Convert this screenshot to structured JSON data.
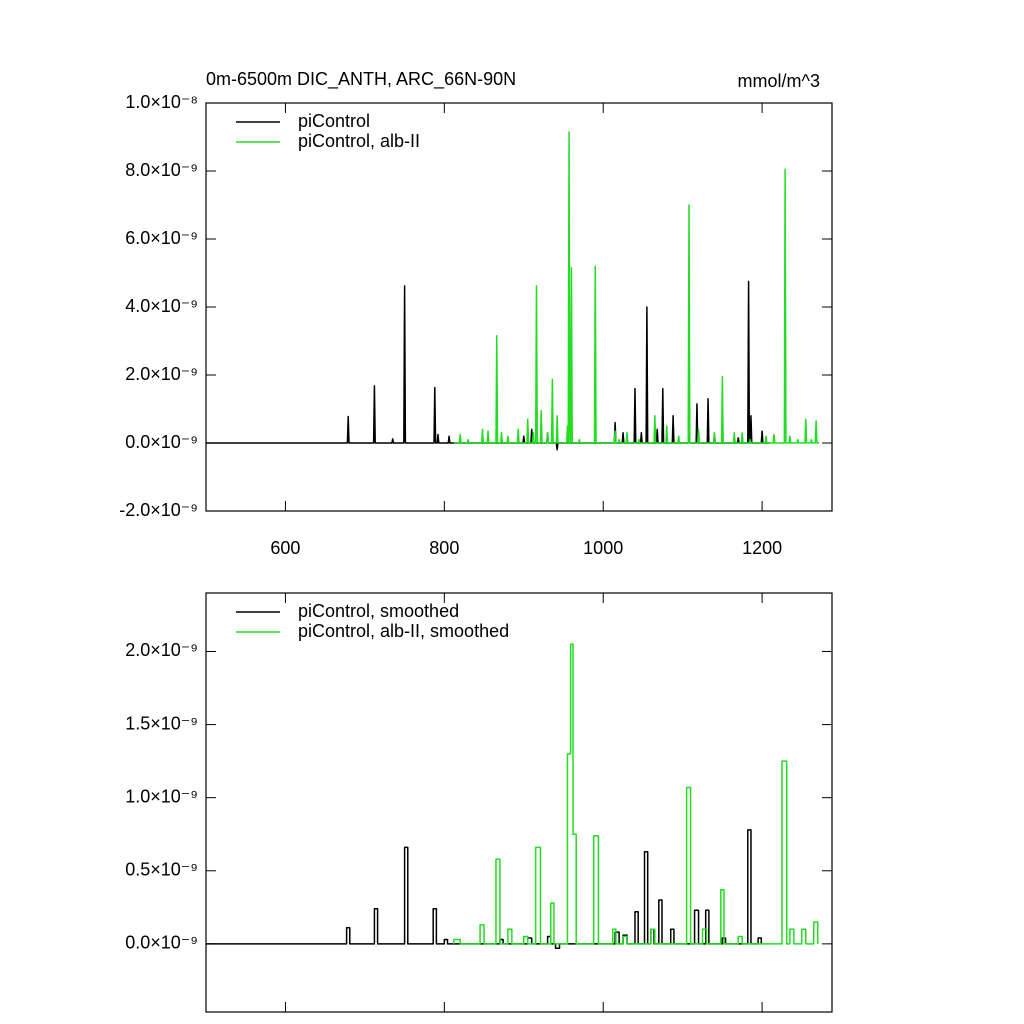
{
  "chart_data": [
    {
      "type": "line",
      "title": "0m-6500m DIC_ANTH, ARC_66N-90N",
      "units": "mmol/m^3",
      "xlim": [
        500,
        1288
      ],
      "xticks": [
        600,
        800,
        1000,
        1200
      ],
      "show_xtick_labels": true,
      "ylim": [
        -2e-09,
        1e-08
      ],
      "yticks": [
        {
          "value": -2e-09,
          "label": "-2.0×10⁻⁹"
        },
        {
          "value": 0,
          "label": "0.0×10⁻⁹"
        },
        {
          "value": 2e-09,
          "label": "2.0×10⁻⁹"
        },
        {
          "value": 4e-09,
          "label": "4.0×10⁻⁹"
        },
        {
          "value": 6e-09,
          "label": "6.0×10⁻⁹"
        },
        {
          "value": 8e-09,
          "label": "8.0×10⁻⁹"
        },
        {
          "value": 1e-08,
          "label": "1.0×10⁻⁸"
        }
      ],
      "legend": "upper left",
      "series": [
        {
          "name": "piControl",
          "color": "#000000",
          "x": [
            500,
            678,
            679,
            680,
            711,
            712,
            713,
            734,
            735,
            736,
            749,
            750,
            751,
            787,
            788,
            789,
            791,
            792,
            793,
            805,
            806,
            807,
            899,
            900,
            901,
            909,
            910,
            911,
            929,
            930,
            931,
            941,
            942,
            943,
            1014,
            1015,
            1016,
            1024,
            1025,
            1026,
            1039,
            1040,
            1041,
            1047,
            1048,
            1049,
            1054,
            1055,
            1056,
            1067,
            1068,
            1069,
            1074,
            1075,
            1076,
            1087,
            1088,
            1089,
            1107,
            1108,
            1109,
            1117,
            1118,
            1119,
            1131,
            1132,
            1133,
            1139,
            1140,
            1141,
            1169,
            1170,
            1171,
            1182,
            1183,
            1184,
            1185,
            1186,
            1187,
            1199,
            1200,
            1201,
            1210
          ],
          "values": [
            0,
            0,
            7.8e-10,
            0,
            0,
            1.68e-09,
            0,
            0,
            1.2e-10,
            0,
            0,
            4.62e-09,
            0,
            0,
            1.63e-09,
            0,
            0,
            2.5e-10,
            0,
            0,
            2e-10,
            0,
            0,
            2e-10,
            0,
            0,
            4e-10,
            0,
            0,
            3e-10,
            0,
            0,
            -2e-10,
            0,
            0,
            6e-10,
            0,
            0,
            3e-10,
            0,
            0,
            1.6e-09,
            0,
            0,
            3e-10,
            0,
            0,
            4e-09,
            0,
            0,
            4e-10,
            0,
            0,
            1.6e-09,
            0,
            0,
            8e-10,
            0,
            0,
            3e-10,
            0,
            0,
            1.15e-09,
            0,
            0,
            1.3e-09,
            0,
            0,
            2.5e-10,
            0,
            0,
            1.5e-10,
            0,
            0,
            4.75e-09,
            0,
            0,
            8e-10,
            0,
            0,
            3.5e-10,
            0,
            0
          ]
        },
        {
          "name": "piControl, alb-II",
          "color": "#22dd22",
          "x": [
            812,
            819,
            820,
            821,
            829,
            830,
            831,
            847,
            848,
            849,
            854,
            855,
            856,
            865,
            866,
            867,
            871,
            872,
            873,
            879,
            880,
            881,
            892,
            893,
            894,
            904,
            905,
            906,
            911,
            912,
            913,
            915,
            916,
            917,
            921,
            922,
            923,
            929,
            930,
            931,
            935,
            936,
            937,
            941,
            942,
            943,
            954,
            955,
            956,
            956,
            957,
            958,
            959,
            960,
            961,
            969,
            970,
            971,
            989,
            990,
            991,
            1014,
            1015,
            1016,
            1019,
            1020,
            1021,
            1029,
            1030,
            1031,
            1044,
            1045,
            1046,
            1064,
            1065,
            1066,
            1079,
            1080,
            1081,
            1094,
            1095,
            1096,
            1107,
            1108,
            1109,
            1119,
            1120,
            1121,
            1139,
            1140,
            1141,
            1149,
            1150,
            1151,
            1164,
            1165,
            1166,
            1174,
            1175,
            1176,
            1184,
            1185,
            1186,
            1204,
            1205,
            1206,
            1214,
            1215,
            1216,
            1228,
            1229,
            1230,
            1234,
            1235,
            1236,
            1244,
            1245,
            1246,
            1254,
            1255,
            1256,
            1261,
            1262,
            1263,
            1267,
            1268,
            1269,
            1272
          ],
          "values": [
            0,
            0,
            2.5e-10,
            0,
            0,
            1e-10,
            0,
            0,
            4e-10,
            0,
            0,
            3.5e-10,
            0,
            0,
            3.15e-09,
            0,
            0,
            3e-10,
            0,
            0,
            2e-10,
            0,
            0,
            4e-10,
            0,
            0,
            7e-10,
            0,
            0,
            3e-10,
            0,
            0,
            4.62e-09,
            0,
            0,
            9.5e-10,
            0,
            0,
            3e-10,
            0,
            0,
            1.88e-09,
            0,
            0,
            8e-10,
            0,
            0,
            5e-10,
            0,
            0,
            9.15e-09,
            0,
            0,
            5.15e-09,
            0,
            0,
            1e-10,
            0,
            0,
            5.2e-09,
            0,
            0,
            3.5e-10,
            0,
            0,
            1e-10,
            0,
            0,
            3e-10,
            0,
            0,
            1e-10,
            0,
            0,
            8e-10,
            0,
            0,
            5e-10,
            0,
            0,
            2e-10,
            0,
            0,
            7e-09,
            0,
            0,
            4e-10,
            0,
            0,
            3e-10,
            0,
            0,
            1.95e-09,
            0,
            0,
            3e-10,
            0,
            0,
            3e-10,
            0,
            0,
            1e-10,
            0,
            0,
            2e-10,
            0,
            0,
            2.5e-10,
            0,
            0,
            8.05e-09,
            0,
            0,
            2e-10,
            0,
            0,
            1e-10,
            0,
            0,
            7e-10,
            0,
            0,
            1e-10,
            0,
            0,
            6.5e-10,
            0,
            0
          ]
        }
      ]
    },
    {
      "type": "line",
      "xlim": [
        500,
        1288
      ],
      "xticks": [
        600,
        800,
        1000,
        1200
      ],
      "show_xtick_labels": false,
      "ylim": [
        -4.66e-10,
        2.4e-09
      ],
      "yticks": [
        {
          "value": 0,
          "label": "0.0×10⁻⁹"
        },
        {
          "value": 5e-10,
          "label": "0.5×10⁻⁹"
        },
        {
          "value": 1e-09,
          "label": "1.0×10⁻⁹"
        },
        {
          "value": 1.5e-09,
          "label": "1.5×10⁻⁹"
        },
        {
          "value": 2e-09,
          "label": "2.0×10⁻⁹"
        }
      ],
      "legend": "upper left",
      "series": [
        {
          "name": "piControl, smoothed",
          "color": "#000000",
          "x": [
            500,
            677,
            677,
            681,
            681,
            712,
            712,
            716,
            716,
            750,
            750,
            754,
            754,
            786,
            786,
            790,
            790,
            800,
            800,
            804,
            804,
            870,
            870,
            874,
            874,
            905,
            905,
            910,
            910,
            930,
            930,
            934,
            934,
            940,
            940,
            945,
            945,
            1015,
            1015,
            1020,
            1020,
            1025,
            1025,
            1030,
            1030,
            1040,
            1040,
            1044,
            1044,
            1052,
            1052,
            1056,
            1056,
            1060,
            1060,
            1064,
            1064,
            1070,
            1070,
            1074,
            1074,
            1085,
            1085,
            1089,
            1089,
            1115,
            1115,
            1120,
            1120,
            1129,
            1129,
            1133,
            1133,
            1150,
            1150,
            1154,
            1154,
            1182,
            1182,
            1186,
            1186,
            1195,
            1195,
            1199,
            1199,
            1200
          ],
          "values": [
            0,
            0,
            1.1e-10,
            1.1e-10,
            0,
            0,
            2.4e-10,
            2.4e-10,
            0,
            0,
            6.6e-10,
            6.6e-10,
            0,
            0,
            2.4e-10,
            2.4e-10,
            0,
            0,
            3e-11,
            3e-11,
            0,
            0,
            3e-11,
            3e-11,
            0,
            0,
            4e-11,
            4e-11,
            0,
            0,
            5e-11,
            5e-11,
            0,
            0,
            -3e-11,
            -3e-11,
            0,
            0,
            8e-11,
            8e-11,
            0,
            0,
            6e-11,
            6e-11,
            0,
            0,
            2.2e-10,
            2.2e-10,
            0,
            0,
            6.3e-10,
            6.3e-10,
            0,
            0,
            1e-10,
            1e-10,
            0,
            0,
            3e-10,
            3e-10,
            0,
            0,
            1e-10,
            1e-10,
            0,
            0,
            2.3e-10,
            2.3e-10,
            0,
            0,
            2.3e-10,
            2.3e-10,
            0,
            0,
            4e-11,
            4e-11,
            0,
            0,
            7.8e-10,
            7.8e-10,
            0,
            0,
            4e-11,
            4e-11,
            0,
            0
          ]
        },
        {
          "name": "piControl, alb-II, smoothed",
          "color": "#22dd22",
          "x": [
            812,
            812,
            820,
            820,
            845,
            845,
            850,
            850,
            865,
            865,
            870,
            870,
            880,
            880,
            885,
            885,
            900,
            900,
            905,
            905,
            915,
            915,
            921,
            921,
            934,
            934,
            938,
            938,
            955,
            955,
            959,
            959,
            962,
            962,
            966,
            966,
            988,
            988,
            994,
            994,
            1012,
            1012,
            1016,
            1016,
            1025,
            1025,
            1030,
            1030,
            1060,
            1060,
            1065,
            1065,
            1105,
            1105,
            1110,
            1110,
            1125,
            1125,
            1130,
            1130,
            1148,
            1148,
            1152,
            1152,
            1170,
            1170,
            1175,
            1175,
            1225,
            1225,
            1231,
            1231,
            1235,
            1235,
            1240,
            1240,
            1250,
            1250,
            1255,
            1255,
            1265,
            1265,
            1270,
            1270
          ],
          "values": [
            0,
            3e-11,
            3e-11,
            0,
            0,
            1.3e-10,
            1.3e-10,
            0,
            0,
            5.8e-10,
            5.8e-10,
            0,
            0,
            1e-10,
            1e-10,
            0,
            0,
            5e-11,
            5e-11,
            0,
            0,
            6.6e-10,
            6.6e-10,
            0,
            0,
            2.8e-10,
            2.8e-10,
            0,
            0,
            1.3e-09,
            1.3e-09,
            2.05e-09,
            2.05e-09,
            7.5e-10,
            7.5e-10,
            0,
            0,
            7.4e-10,
            7.4e-10,
            0,
            0,
            1e-10,
            1e-10,
            0,
            0,
            5e-11,
            5e-11,
            0,
            0,
            1e-10,
            1e-10,
            0,
            0,
            1.07e-09,
            1.07e-09,
            0,
            0,
            1e-10,
            1e-10,
            0,
            0,
            3.7e-10,
            3.7e-10,
            0,
            0,
            5e-11,
            5e-11,
            0,
            0,
            1.25e-09,
            1.25e-09,
            0,
            0,
            1e-10,
            1e-10,
            0,
            0,
            1e-10,
            1e-10,
            0,
            0,
            1.5e-10,
            1.5e-10,
            0
          ]
        }
      ]
    }
  ]
}
